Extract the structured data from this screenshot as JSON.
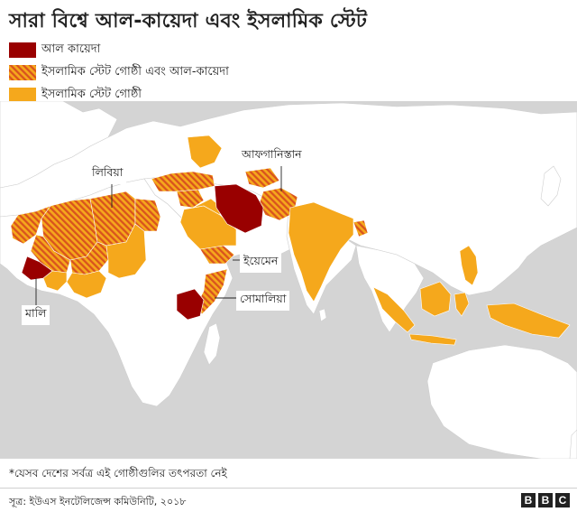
{
  "title": "সারা বিশ্বে আল-কায়েদা এবং ইসলামিক স্টেট",
  "legend": [
    {
      "label": "আল কায়েদা",
      "color": "#990000",
      "pattern": "solid"
    },
    {
      "label": "ইসলামিক স্টেট গোষ্ঠী এবং আল-কায়েদা",
      "color": "#e07020",
      "pattern": "hatched"
    },
    {
      "label": "ইসলামিক স্টেট গোষ্ঠী",
      "color": "#f5a81c",
      "pattern": "solid"
    }
  ],
  "map_labels": {
    "libya": "লিবিয়া",
    "afghanistan": "আফগানিস্তান",
    "yemen": "ইয়েমেন",
    "somalia": "সোমালিয়া",
    "mali": "মালি"
  },
  "colors": {
    "map_background": "#d4d4d4",
    "land": "#ffffff",
    "al_qaeda": "#990000",
    "both_base": "#f5a81c",
    "both_stripe": "#d9531e",
    "is": "#f5a81c"
  },
  "footnote": "*যেসব দেশের সর্বত্র এই গোষ্ঠীগুলির তৎপরতা নেই",
  "source": "সূত্র: ইউএস ইনটেলিজেন্স কমিউনিটি, ২০১৮",
  "logo": [
    "B",
    "B",
    "C"
  ]
}
